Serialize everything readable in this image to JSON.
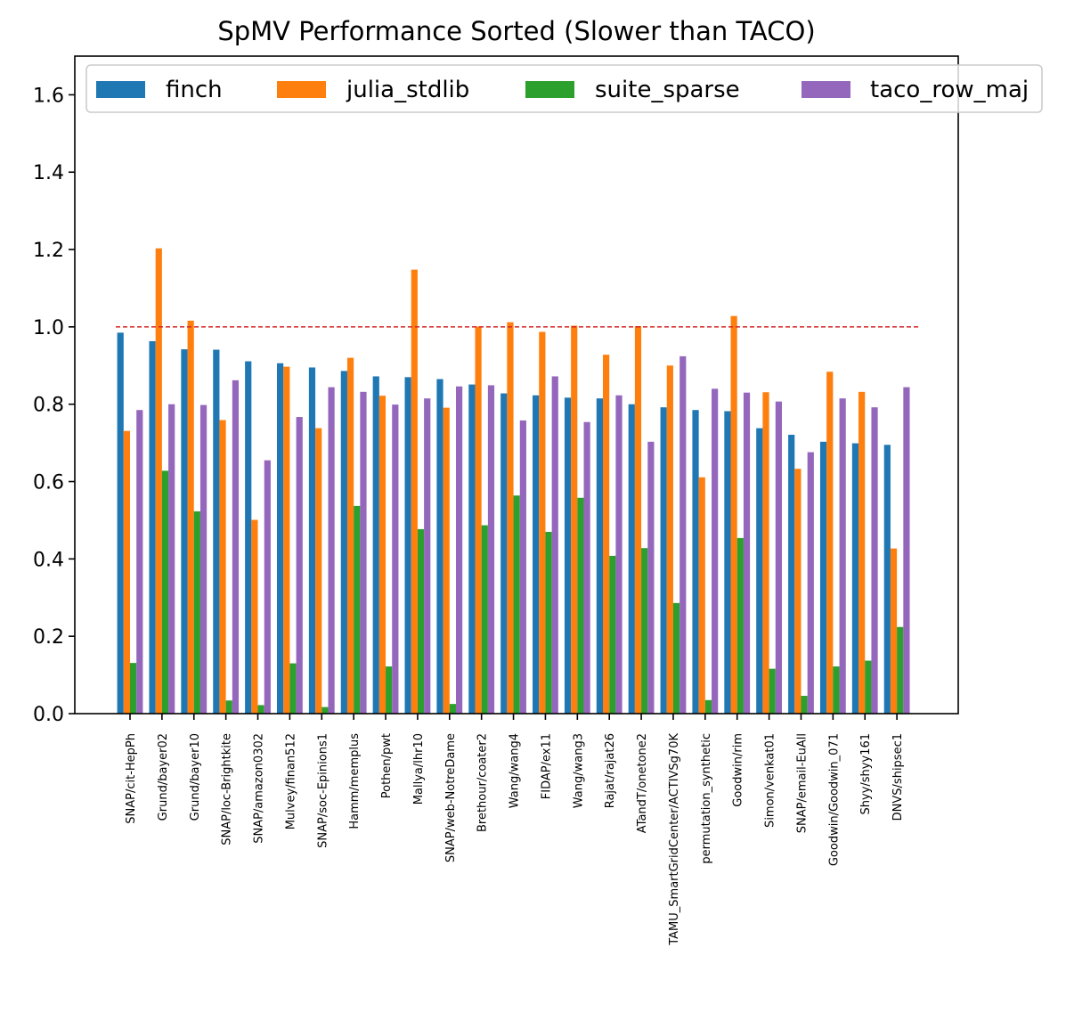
{
  "chart_data": {
    "type": "bar",
    "title": "SpMV Performance Sorted (Slower than TACO)",
    "xlabel": "",
    "ylabel": "",
    "ylim": [
      0,
      1.7
    ],
    "yticks": [
      0.0,
      0.2,
      0.4,
      0.6,
      0.8,
      1.0,
      1.2,
      1.4,
      1.6
    ],
    "ytick_labels": [
      "0.0",
      "0.2",
      "0.4",
      "0.6",
      "0.8",
      "1.0",
      "1.2",
      "1.4",
      "1.6"
    ],
    "reference_line": {
      "y": 1.0,
      "color": "#d62728",
      "style": "dashed"
    },
    "grid": false,
    "legend_position": "top",
    "categories": [
      "SNAP/cit-HepPh",
      "Grund/bayer02",
      "Grund/bayer10",
      "SNAP/loc-Brightkite",
      "SNAP/amazon0302",
      "Mulvey/finan512",
      "SNAP/soc-Epinions1",
      "Hamm/memplus",
      "Pothen/pwt",
      "Mallya/lhr10",
      "SNAP/web-NotreDame",
      "Brethour/coater2",
      "Wang/wang4",
      "FIDAP/ex11",
      "Wang/wang3",
      "Rajat/rajat26",
      "ATandT/onetone2",
      "TAMU_SmartGridCenter/ACTIVSg70K",
      "permutation_synthetic",
      "Goodwin/rim",
      "Simon/venkat01",
      "SNAP/email-EuAll",
      "Goodwin/Goodwin_071",
      "Shyy/shyy161",
      "DNVS/shipsec1"
    ],
    "series": [
      {
        "name": "finch",
        "color": "#1f77b4",
        "values": [
          0.985,
          0.963,
          0.942,
          0.941,
          0.911,
          0.906,
          0.895,
          0.886,
          0.872,
          0.87,
          0.865,
          0.851,
          0.828,
          0.823,
          0.817,
          0.815,
          0.8,
          0.792,
          0.785,
          0.782,
          0.738,
          0.721,
          0.703,
          0.699,
          0.695
        ]
      },
      {
        "name": "julia_stdlib",
        "color": "#ff7f0e",
        "values": [
          0.731,
          1.203,
          1.016,
          0.759,
          0.501,
          0.897,
          0.738,
          0.92,
          0.822,
          1.148,
          0.791,
          1.001,
          1.012,
          0.987,
          1.003,
          0.928,
          1.002,
          0.9,
          0.611,
          1.028,
          0.831,
          0.633,
          0.884,
          0.832,
          0.427
        ]
      },
      {
        "name": "suite_sparse",
        "color": "#2ca02c",
        "values": [
          0.131,
          0.628,
          0.523,
          0.034,
          0.022,
          0.13,
          0.017,
          0.537,
          0.122,
          0.477,
          0.025,
          0.487,
          0.564,
          0.47,
          0.558,
          0.408,
          0.428,
          0.286,
          0.035,
          0.454,
          0.116,
          0.046,
          0.122,
          0.137,
          0.224
        ]
      },
      {
        "name": "taco_row_maj",
        "color": "#9467bd",
        "values": [
          0.785,
          0.8,
          0.798,
          0.862,
          0.655,
          0.767,
          0.844,
          0.832,
          0.799,
          0.815,
          0.846,
          0.849,
          0.758,
          0.872,
          0.754,
          0.823,
          0.703,
          0.924,
          0.84,
          0.83,
          0.807,
          0.676,
          0.815,
          0.792,
          0.844
        ]
      }
    ]
  }
}
